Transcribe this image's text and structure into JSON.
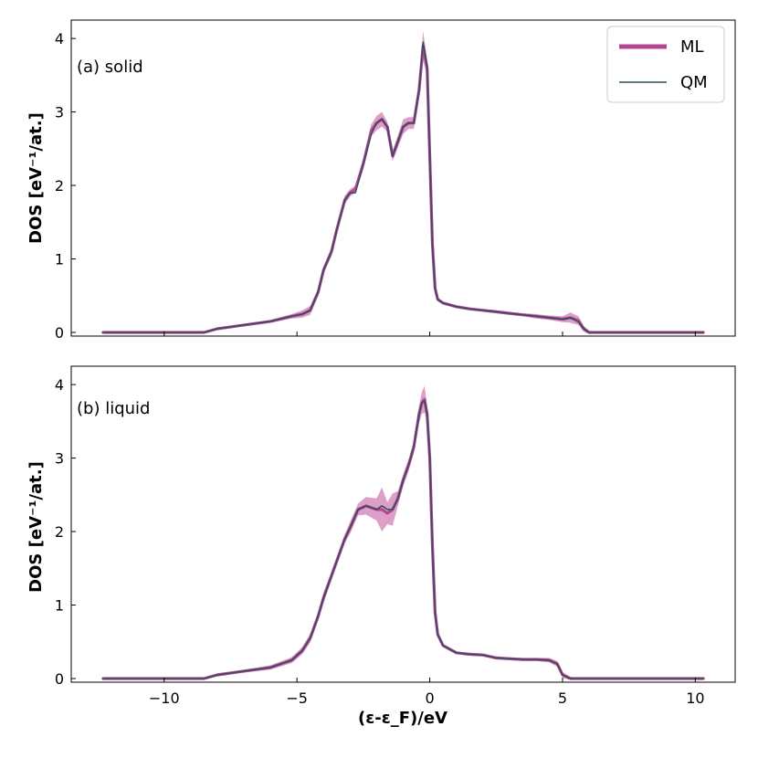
{
  "chart_data": [
    {
      "type": "line",
      "panel_label": "(a) solid",
      "xlabel": "(ε-ε_F)/eV",
      "ylabel": "DOS [eV⁻¹/at.]",
      "xlim": [
        -13.5,
        11.5
      ],
      "ylim": [
        -0.05,
        4.25
      ],
      "xticks": [
        -10,
        -5,
        0,
        5,
        10
      ],
      "xtick_labels": [
        "−10",
        "−5",
        "0",
        "5",
        "10"
      ],
      "yticks": [
        0,
        1,
        2,
        3,
        4
      ],
      "ytick_labels": [
        "0",
        "1",
        "2",
        "3",
        "4"
      ],
      "show_xtick_labels": false,
      "legend": {
        "placement": "top-right",
        "entries": [
          "ML",
          "QM"
        ]
      },
      "band_color": "#c0509a",
      "series": [
        {
          "name": "ML",
          "color": "#b5478f",
          "x": [
            -12.3,
            -10,
            -8.5,
            -8,
            -7,
            -6,
            -5.2,
            -4.8,
            -4.5,
            -4.2,
            -4.0,
            -3.7,
            -3.5,
            -3.2,
            -3.0,
            -2.8,
            -2.5,
            -2.2,
            -2.0,
            -1.8,
            -1.6,
            -1.4,
            -1.2,
            -1.0,
            -0.8,
            -0.6,
            -0.4,
            -0.25,
            -0.1,
            0.0,
            0.1,
            0.2,
            0.3,
            0.5,
            1,
            1.5,
            2,
            2.5,
            3,
            3.5,
            4,
            4.5,
            5,
            5.3,
            5.6,
            5.8,
            6.0,
            7,
            8,
            9,
            10.3
          ],
          "values": [
            0.0,
            0.0,
            0.0,
            0.05,
            0.1,
            0.15,
            0.22,
            0.25,
            0.3,
            0.55,
            0.85,
            1.1,
            1.4,
            1.8,
            1.9,
            1.95,
            2.3,
            2.75,
            2.85,
            2.9,
            2.8,
            2.4,
            2.6,
            2.8,
            2.85,
            2.85,
            3.3,
            3.9,
            3.6,
            2.4,
            1.2,
            0.6,
            0.45,
            0.4,
            0.35,
            0.32,
            0.3,
            0.28,
            0.26,
            0.24,
            0.22,
            0.2,
            0.18,
            0.2,
            0.16,
            0.05,
            0.0,
            0.0,
            0.0,
            0.0,
            0.0
          ],
          "band_halfwidth": [
            0.01,
            0.01,
            0.01,
            0.01,
            0.01,
            0.02,
            0.03,
            0.05,
            0.06,
            0.05,
            0.05,
            0.06,
            0.05,
            0.06,
            0.05,
            0.05,
            0.08,
            0.08,
            0.1,
            0.1,
            0.07,
            0.07,
            0.08,
            0.1,
            0.08,
            0.08,
            0.1,
            0.2,
            0.12,
            0.06,
            0.05,
            0.03,
            0.02,
            0.02,
            0.02,
            0.02,
            0.02,
            0.02,
            0.02,
            0.02,
            0.03,
            0.03,
            0.04,
            0.07,
            0.06,
            0.04,
            0.02,
            0.01,
            0.01,
            0.01,
            0.01
          ]
        },
        {
          "name": "QM",
          "color": "#2e4f5f",
          "x": [
            -12.3,
            -10,
            -8.5,
            -8,
            -7,
            -6,
            -5.2,
            -4.8,
            -4.5,
            -4.2,
            -4.0,
            -3.7,
            -3.5,
            -3.2,
            -3.0,
            -2.8,
            -2.5,
            -2.2,
            -2.0,
            -1.8,
            -1.6,
            -1.4,
            -1.2,
            -1.0,
            -0.8,
            -0.6,
            -0.4,
            -0.25,
            -0.1,
            0.0,
            0.1,
            0.2,
            0.3,
            0.5,
            1,
            1.5,
            2,
            2.5,
            3,
            3.5,
            4,
            4.5,
            5,
            5.3,
            5.6,
            5.8,
            6.0,
            7,
            8,
            9,
            10.3
          ],
          "values": [
            0.0,
            0.0,
            0.0,
            0.05,
            0.1,
            0.15,
            0.22,
            0.25,
            0.3,
            0.55,
            0.85,
            1.1,
            1.4,
            1.8,
            1.9,
            1.9,
            2.3,
            2.7,
            2.85,
            2.9,
            2.8,
            2.4,
            2.6,
            2.8,
            2.85,
            2.85,
            3.3,
            3.95,
            3.6,
            2.4,
            1.2,
            0.6,
            0.45,
            0.4,
            0.35,
            0.32,
            0.3,
            0.28,
            0.26,
            0.24,
            0.22,
            0.2,
            0.18,
            0.2,
            0.14,
            0.05,
            0.0,
            0.0,
            0.0,
            0.0,
            0.0
          ]
        }
      ]
    },
    {
      "type": "line",
      "panel_label": "(b) liquid",
      "xlabel": "(ε-ε_F)/eV",
      "ylabel": "DOS [eV⁻¹/at.]",
      "xlim": [
        -13.5,
        11.5
      ],
      "ylim": [
        -0.05,
        4.25
      ],
      "xticks": [
        -10,
        -5,
        0,
        5,
        10
      ],
      "xtick_labels": [
        "−10",
        "−5",
        "0",
        "5",
        "10"
      ],
      "yticks": [
        0,
        1,
        2,
        3,
        4
      ],
      "ytick_labels": [
        "0",
        "1",
        "2",
        "3",
        "4"
      ],
      "show_xtick_labels": true,
      "band_color": "#c0509a",
      "series": [
        {
          "name": "ML",
          "color": "#b5478f",
          "x": [
            -12.3,
            -10,
            -8.5,
            -8,
            -7,
            -6,
            -5.2,
            -4.8,
            -4.5,
            -4.2,
            -4.0,
            -3.7,
            -3.5,
            -3.2,
            -3.0,
            -2.7,
            -2.4,
            -2.0,
            -1.8,
            -1.6,
            -1.4,
            -1.2,
            -1.0,
            -0.8,
            -0.6,
            -0.4,
            -0.3,
            -0.2,
            -0.1,
            0.0,
            0.1,
            0.2,
            0.3,
            0.5,
            1.0,
            1.5,
            2.0,
            2.5,
            3.0,
            3.5,
            4.0,
            4.5,
            4.8,
            5.0,
            5.3,
            6,
            7,
            8,
            9,
            10.3
          ],
          "values": [
            0.0,
            0.0,
            0.0,
            0.05,
            0.1,
            0.15,
            0.25,
            0.38,
            0.55,
            0.85,
            1.1,
            1.4,
            1.6,
            1.9,
            2.05,
            2.3,
            2.35,
            2.3,
            2.3,
            2.25,
            2.3,
            2.45,
            2.7,
            2.9,
            3.15,
            3.6,
            3.75,
            3.8,
            3.6,
            3.0,
            1.8,
            0.9,
            0.6,
            0.45,
            0.35,
            0.33,
            0.32,
            0.28,
            0.27,
            0.26,
            0.26,
            0.25,
            0.2,
            0.05,
            0.0,
            0.0,
            0.0,
            0.0,
            0.0,
            0.0
          ],
          "band_halfwidth": [
            0.01,
            0.01,
            0.01,
            0.02,
            0.02,
            0.03,
            0.04,
            0.05,
            0.06,
            0.06,
            0.07,
            0.06,
            0.06,
            0.06,
            0.08,
            0.08,
            0.12,
            0.15,
            0.3,
            0.15,
            0.22,
            0.1,
            0.08,
            0.08,
            0.08,
            0.12,
            0.15,
            0.18,
            0.12,
            0.1,
            0.06,
            0.04,
            0.03,
            0.02,
            0.02,
            0.02,
            0.02,
            0.02,
            0.02,
            0.02,
            0.02,
            0.03,
            0.04,
            0.04,
            0.02,
            0.01,
            0.01,
            0.01,
            0.01,
            0.01
          ]
        },
        {
          "name": "QM",
          "color": "#2e4f5f",
          "x": [
            -12.3,
            -10,
            -8.5,
            -8,
            -7,
            -6,
            -5.2,
            -4.8,
            -4.5,
            -4.2,
            -4.0,
            -3.7,
            -3.5,
            -3.2,
            -3.0,
            -2.7,
            -2.4,
            -2.0,
            -1.8,
            -1.6,
            -1.4,
            -1.2,
            -1.0,
            -0.8,
            -0.6,
            -0.4,
            -0.3,
            -0.2,
            -0.1,
            0.0,
            0.1,
            0.2,
            0.3,
            0.5,
            1.0,
            1.5,
            2.0,
            2.5,
            3.0,
            3.5,
            4.0,
            4.5,
            4.8,
            5.0,
            5.3,
            6,
            7,
            8,
            9,
            10.3
          ],
          "values": [
            0.0,
            0.0,
            0.0,
            0.05,
            0.1,
            0.15,
            0.25,
            0.38,
            0.55,
            0.85,
            1.1,
            1.4,
            1.6,
            1.9,
            2.05,
            2.3,
            2.35,
            2.3,
            2.35,
            2.3,
            2.3,
            2.45,
            2.7,
            2.9,
            3.15,
            3.6,
            3.75,
            3.78,
            3.6,
            3.0,
            1.8,
            0.9,
            0.6,
            0.45,
            0.35,
            0.33,
            0.32,
            0.28,
            0.27,
            0.26,
            0.26,
            0.25,
            0.2,
            0.05,
            0.0,
            0.0,
            0.0,
            0.0,
            0.0,
            0.0
          ]
        }
      ]
    }
  ]
}
